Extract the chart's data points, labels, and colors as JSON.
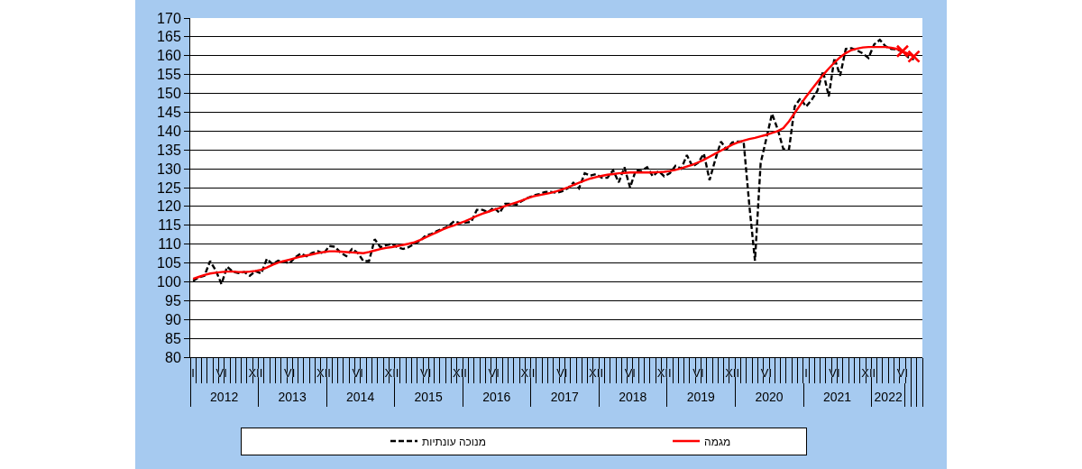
{
  "chart_data": {
    "type": "line",
    "categories": [
      "I",
      null,
      null,
      null,
      null,
      "VI",
      null,
      null,
      null,
      null,
      null,
      "XII",
      null,
      null,
      null,
      null,
      null,
      "VI",
      null,
      null,
      null,
      null,
      null,
      "XII",
      null,
      null,
      null,
      null,
      null,
      "VI",
      null,
      null,
      null,
      null,
      null,
      "XII",
      null,
      null,
      null,
      null,
      null,
      "VI",
      null,
      null,
      null,
      null,
      null,
      "XII",
      null,
      null,
      null,
      null,
      null,
      "VI",
      null,
      null,
      null,
      null,
      null,
      "XII",
      null,
      null,
      null,
      null,
      null,
      "VI",
      null,
      null,
      null,
      null,
      null,
      "XII",
      null,
      null,
      null,
      null,
      null,
      "VI",
      null,
      null,
      null,
      null,
      null,
      "XII",
      null,
      null,
      null,
      null,
      null,
      "VI",
      null,
      null,
      null,
      null,
      null,
      "XII",
      null,
      null,
      null,
      null,
      null,
      "VI",
      null,
      null,
      null,
      null,
      null,
      null,
      "I",
      null,
      null,
      null,
      null,
      "VI",
      null,
      null,
      null,
      null,
      null,
      "XII",
      null,
      null,
      null,
      null,
      null,
      "VI",
      null,
      null,
      null
    ],
    "series": [
      {
        "name": "מנוכה עונתיות",
        "color": "#000000",
        "line_style": "dashed",
        "values": [
          100.2,
          101.2,
          101.6,
          105.5,
          103.0,
          99.4,
          104.0,
          102.7,
          102.3,
          102.6,
          101.6,
          102.8,
          102.2,
          106.1,
          104.7,
          105.6,
          105.3,
          104.9,
          106.5,
          107.5,
          106.8,
          107.7,
          108.1,
          107.5,
          109.5,
          109.3,
          107.7,
          106.8,
          108.7,
          107.7,
          105.5,
          105.5,
          111.3,
          109.2,
          109.7,
          110.1,
          109.2,
          108.7,
          109.2,
          110.1,
          110.9,
          112.3,
          112.7,
          113.5,
          114.1,
          114.8,
          116.1,
          115.6,
          115.7,
          115.9,
          119.1,
          119.1,
          118.5,
          119.7,
          118.3,
          120.7,
          120.7,
          120.5,
          121.5,
          122.3,
          122.9,
          123.3,
          123.8,
          123.9,
          123.6,
          124.0,
          124.8,
          126.3,
          124.8,
          128.8,
          128.2,
          128.6,
          127.6,
          127.6,
          129.6,
          126.4,
          130.4,
          125.0,
          129.6,
          129.4,
          130.4,
          128.0,
          129.4,
          128.0,
          128.8,
          130.8,
          130.0,
          133.6,
          130.6,
          131.6,
          134.0,
          127.0,
          132.4,
          137.2,
          135.2,
          137.0,
          137.2,
          137.2,
          120.4,
          105.6,
          131.5,
          138.0,
          144.6,
          140.5,
          135.2,
          135.2,
          146.5,
          148.7,
          146.5,
          148.3,
          150.7,
          155.9,
          149.2,
          159.4,
          154.7,
          161.8,
          162.0,
          161.4,
          160.6,
          159.4,
          163.0,
          164.2,
          162.5,
          161.8,
          161.7,
          161.0,
          159.6,
          159.0,
          null
        ]
      },
      {
        "name": "מגמה",
        "color": "#ff0000",
        "line_style": "solid",
        "values": [
          100.8,
          101.3,
          101.8,
          102.2,
          102.4,
          102.6,
          102.7,
          102.7,
          102.6,
          102.6,
          102.7,
          102.9,
          103.2,
          103.8,
          104.5,
          105.1,
          105.5,
          105.9,
          106.3,
          106.7,
          107.0,
          107.3,
          107.6,
          107.9,
          108.1,
          108.1,
          108.0,
          107.9,
          107.8,
          107.7,
          107.6,
          107.9,
          108.3,
          108.7,
          109.0,
          109.2,
          109.5,
          109.8,
          110.1,
          110.5,
          111.1,
          111.8,
          112.5,
          113.2,
          113.9,
          114.5,
          115.0,
          115.6,
          116.1,
          116.8,
          117.5,
          118.1,
          118.6,
          119.1,
          119.6,
          120.1,
          120.6,
          121.1,
          121.6,
          122.2,
          122.7,
          123.0,
          123.3,
          123.6,
          124.0,
          124.5,
          125.0,
          125.7,
          126.3,
          126.9,
          127.4,
          127.8,
          128.1,
          128.4,
          128.6,
          128.8,
          128.9,
          129.0,
          129.0,
          129.0,
          129.0,
          129.0,
          129.1,
          129.2,
          129.4,
          129.7,
          130.1,
          130.6,
          131.1,
          131.7,
          132.4,
          133.2,
          134.0,
          134.8,
          135.6,
          136.4,
          137.0,
          137.5,
          137.9,
          138.2,
          138.6,
          139.0,
          139.5,
          140.0,
          140.8,
          142.6,
          144.8,
          147.0,
          149.1,
          151.1,
          153.0,
          154.9,
          156.6,
          158.2,
          159.6,
          160.7,
          161.5,
          161.9,
          162.2,
          162.3,
          162.3,
          162.3,
          162.3,
          162.1,
          161.8,
          161.2,
          160.5,
          159.8,
          null
        ]
      },
      {
        "type": "scatter",
        "color": "#ff0000",
        "marker": "cross",
        "values": [
          null,
          null,
          null,
          null,
          null,
          null,
          null,
          null,
          null,
          null,
          null,
          null,
          null,
          null,
          null,
          null,
          null,
          null,
          null,
          null,
          null,
          null,
          null,
          null,
          null,
          null,
          null,
          null,
          null,
          null,
          null,
          null,
          null,
          null,
          null,
          null,
          null,
          null,
          null,
          null,
          null,
          null,
          null,
          null,
          null,
          null,
          null,
          null,
          null,
          null,
          null,
          null,
          null,
          null,
          null,
          null,
          null,
          null,
          null,
          null,
          null,
          null,
          null,
          null,
          null,
          null,
          null,
          null,
          null,
          null,
          null,
          null,
          null,
          null,
          null,
          null,
          null,
          null,
          null,
          null,
          null,
          null,
          null,
          null,
          null,
          null,
          null,
          null,
          null,
          null,
          null,
          null,
          null,
          null,
          null,
          null,
          null,
          null,
          null,
          null,
          null,
          null,
          null,
          null,
          null,
          null,
          null,
          null,
          null,
          null,
          null,
          null,
          null,
          null,
          null,
          null,
          null,
          null,
          null,
          null,
          null,
          null,
          null,
          null,
          null,
          161.2,
          null,
          159.8,
          null
        ]
      }
    ],
    "x2lim": [
      "2012-01-01",
      "2022-10-01"
    ],
    "x2ticks": [
      {
        "value": "2012-07",
        "label": "2012"
      },
      {
        "value": "2013-07",
        "label": "2013"
      },
      {
        "value": "2014-07",
        "label": "2014"
      },
      {
        "value": "2015-07",
        "label": "2015"
      },
      {
        "value": "2016-07",
        "label": "2016"
      },
      {
        "value": "2017-07",
        "label": "2017"
      },
      {
        "value": "2018-07",
        "label": "2018"
      },
      {
        "value": "2019-07",
        "label": "2019"
      },
      {
        "value": "2020-07",
        "label": "2020"
      },
      {
        "value": "2021-07",
        "label": "2021"
      },
      {
        "value": "2022-04",
        "label": "2022"
      }
    ],
    "ylim": [
      80,
      170
    ],
    "yticks": [
      80,
      85,
      90,
      95,
      100,
      105,
      110,
      115,
      120,
      125,
      130,
      135,
      140,
      145,
      150,
      155,
      160,
      165,
      170
    ],
    "grid": "y",
    "legend": "bottom"
  }
}
